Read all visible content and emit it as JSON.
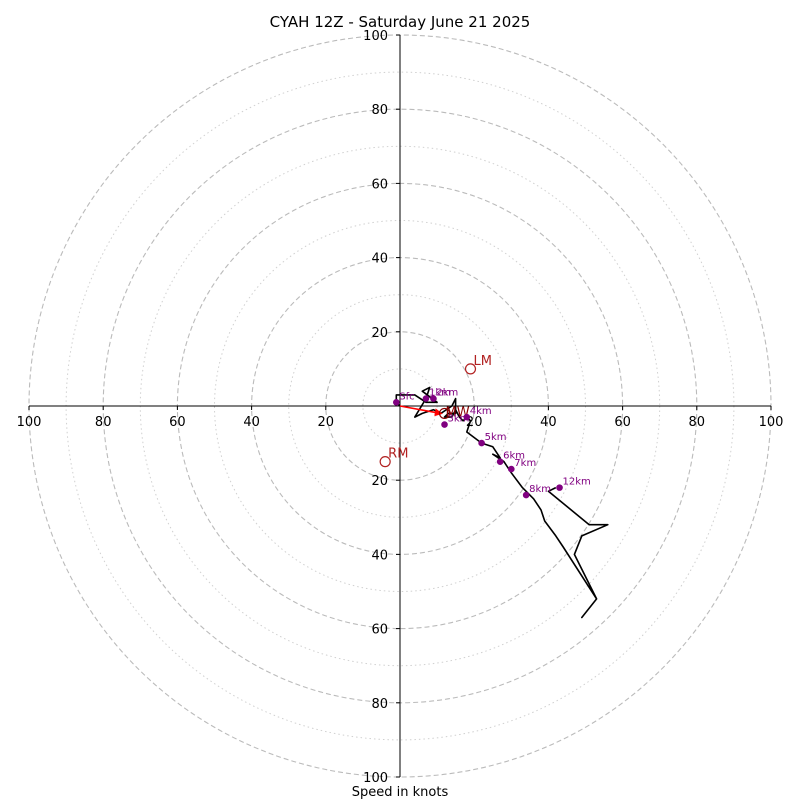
{
  "chart_data": {
    "type": "hodograph",
    "title": "CYAH 12Z - Saturday June 21 2025",
    "xlabel": "Speed in knots",
    "range": [
      -100,
      100
    ],
    "rings_major": [
      20,
      40,
      60,
      80,
      100
    ],
    "rings_minor": [
      10,
      30,
      50,
      70,
      90
    ],
    "x_tick_labels": [
      "100",
      "80",
      "60",
      "40",
      "20",
      "20",
      "40",
      "60",
      "80",
      "100"
    ],
    "x_tick_values": [
      -100,
      -80,
      -60,
      -40,
      -20,
      20,
      40,
      60,
      80,
      100
    ],
    "y_tick_labels": [
      "100",
      "80",
      "60",
      "40",
      "20",
      "20",
      "40",
      "60",
      "80",
      "100"
    ],
    "y_tick_values": [
      100,
      80,
      60,
      40,
      20,
      -20,
      -40,
      -60,
      -80,
      -100
    ],
    "colors": {
      "profile": "#000000",
      "height_markers": "#800080",
      "storm_motion": "#b22222",
      "mean_wind": "#8b0000",
      "shear_vector": "#ff0000",
      "grid": "#bbbbbb"
    },
    "profile": [
      [
        0,
        0
      ],
      [
        -1,
        1
      ],
      [
        -1,
        3
      ],
      [
        4,
        3
      ],
      [
        7,
        1
      ],
      [
        10,
        1
      ],
      [
        6,
        4
      ],
      [
        8,
        5
      ],
      [
        7,
        2
      ],
      [
        4,
        -3
      ],
      [
        6,
        -2
      ],
      [
        9,
        -1
      ],
      [
        11,
        -2
      ],
      [
        14,
        0
      ],
      [
        15,
        2
      ],
      [
        15,
        -2
      ],
      [
        13,
        -2
      ],
      [
        12,
        -3
      ],
      [
        14,
        -3
      ],
      [
        15,
        -1
      ],
      [
        16,
        -3
      ],
      [
        17,
        -4
      ],
      [
        18,
        -3
      ],
      [
        19,
        -4
      ],
      [
        18,
        -7
      ],
      [
        22,
        -10
      ],
      [
        25,
        -11
      ],
      [
        27,
        -14
      ],
      [
        25,
        -13
      ],
      [
        28,
        -15
      ],
      [
        30,
        -18
      ],
      [
        33,
        -22
      ],
      [
        36,
        -25
      ],
      [
        38,
        -28
      ],
      [
        39,
        -31
      ],
      [
        42,
        -35
      ],
      [
        44,
        -38
      ],
      [
        53,
        -52
      ],
      [
        49,
        -57
      ],
      [
        53,
        -52
      ],
      [
        47,
        -40
      ],
      [
        49,
        -35
      ],
      [
        56,
        -32
      ],
      [
        51,
        -32
      ],
      [
        40,
        -23
      ],
      [
        42,
        -22
      ]
    ],
    "height_markers": [
      {
        "label": "Sfc",
        "u": -1,
        "v": 1
      },
      {
        "label": "1km",
        "u": 7,
        "v": 2
      },
      {
        "label": "2km",
        "u": 9,
        "v": 2
      },
      {
        "label": "3km",
        "u": 12,
        "v": -5
      },
      {
        "label": "4km",
        "u": 18,
        "v": -3
      },
      {
        "label": "5km",
        "u": 22,
        "v": -10
      },
      {
        "label": "6km",
        "u": 27,
        "v": -15
      },
      {
        "label": "7km",
        "u": 30,
        "v": -17
      },
      {
        "label": "8km",
        "u": 34,
        "v": -24
      },
      {
        "label": "12km",
        "u": 43,
        "v": -22
      }
    ],
    "storm_motions": [
      {
        "label": "LM",
        "u": 19,
        "v": 10
      },
      {
        "label": "RM",
        "u": -4,
        "v": -15
      }
    ],
    "mean_wind": {
      "label": "MW",
      "u": 12,
      "v": -2
    },
    "shear_vector": {
      "from": [
        0,
        0
      ],
      "to": [
        11,
        -2
      ]
    }
  }
}
